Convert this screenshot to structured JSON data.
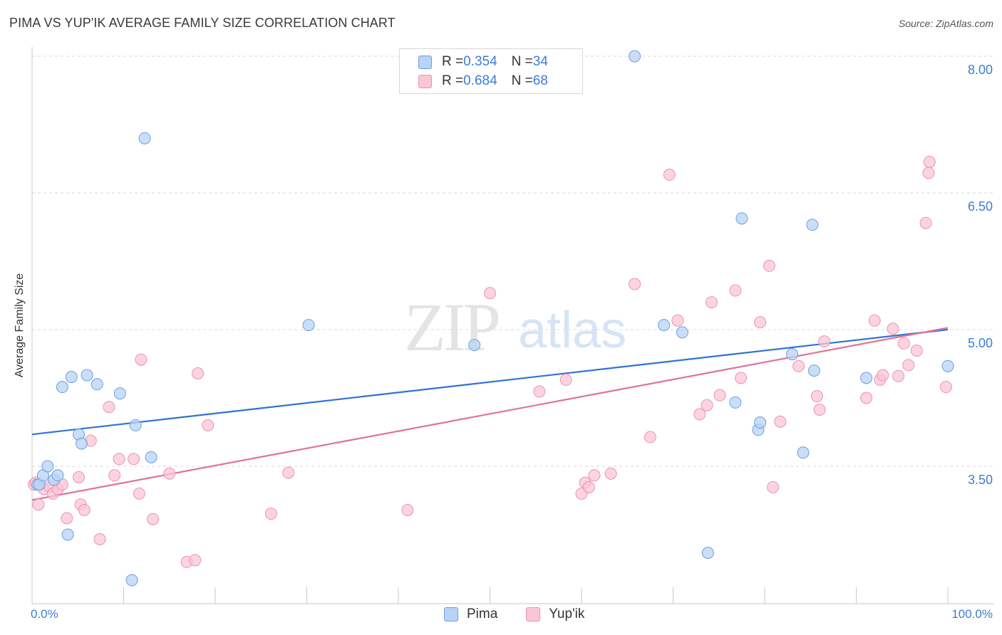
{
  "header": {
    "title": "PIMA VS YUP'IK AVERAGE FAMILY SIZE CORRELATION CHART",
    "source": "Source: ZipAtlas.com"
  },
  "legend_top": {
    "rows": [
      {
        "r_label": "R = ",
        "r_value": "0.354",
        "n_label": "N = ",
        "n_value": "34"
      },
      {
        "r_label": "R = ",
        "r_value": "0.684",
        "n_label": "N = ",
        "n_value": "68"
      }
    ]
  },
  "watermark": {
    "zip": "ZIP",
    "atlas": "atlas"
  },
  "colors": {
    "pima_fill": "#b8d3f5",
    "pima_stroke": "#6d9fe0",
    "pima_line": "#2f72d4",
    "yupik_fill": "#f9c6d5",
    "yupik_stroke": "#ec92b0",
    "yupik_line": "#e0729a",
    "axis_label": "#3b7dd8",
    "grid": "#d9d9d9"
  },
  "chart_data": {
    "type": "scatter",
    "title": "PIMA VS YUP'IK AVERAGE FAMILY SIZE CORRELATION CHART",
    "xlabel": "",
    "ylabel": "Average Family Size",
    "xlim": [
      0,
      100
    ],
    "ylim": [
      2.3,
      8.2
    ],
    "x_tick_labels": [
      "0.0%",
      "100.0%"
    ],
    "y_ticks": [
      3.5,
      5.0,
      6.5,
      8.0
    ],
    "y_tick_labels": [
      "3.50",
      "5.00",
      "6.50",
      "8.00"
    ],
    "grid": true,
    "legend": "bottom-center",
    "series": [
      {
        "name": "Pima",
        "R": 0.354,
        "N": 34,
        "trend": {
          "x": [
            0,
            100
          ],
          "y": [
            3.85,
            5.0
          ]
        },
        "points": [
          [
            0.6,
            3.3
          ],
          [
            0.8,
            3.3
          ],
          [
            1.2,
            3.4
          ],
          [
            1.7,
            3.5
          ],
          [
            2.4,
            3.35
          ],
          [
            2.8,
            3.4
          ],
          [
            3.3,
            4.37
          ],
          [
            3.9,
            2.75
          ],
          [
            4.3,
            4.48
          ],
          [
            5.1,
            3.85
          ],
          [
            5.4,
            3.75
          ],
          [
            6.0,
            4.5
          ],
          [
            7.1,
            4.4
          ],
          [
            9.6,
            4.3
          ],
          [
            10.9,
            2.25
          ],
          [
            11.3,
            3.95
          ],
          [
            12.3,
            7.1
          ],
          [
            13.0,
            3.6
          ],
          [
            30.2,
            5.05
          ],
          [
            48.3,
            4.83
          ],
          [
            65.8,
            8.0
          ],
          [
            69.0,
            5.05
          ],
          [
            71.0,
            4.97
          ],
          [
            73.8,
            2.55
          ],
          [
            76.8,
            4.2
          ],
          [
            77.5,
            6.22
          ],
          [
            79.3,
            3.9
          ],
          [
            79.5,
            3.98
          ],
          [
            83.0,
            4.73
          ],
          [
            84.2,
            3.65
          ],
          [
            85.2,
            6.15
          ],
          [
            85.4,
            4.55
          ],
          [
            91.1,
            4.47
          ],
          [
            100.0,
            4.6
          ]
        ]
      },
      {
        "name": "Yup'ik",
        "R": 0.684,
        "N": 68,
        "trend": {
          "x": [
            0,
            100
          ],
          "y": [
            3.13,
            5.02
          ]
        },
        "points": [
          [
            0.2,
            3.3
          ],
          [
            0.7,
            3.08
          ],
          [
            1.3,
            3.25
          ],
          [
            1.9,
            3.28
          ],
          [
            2.3,
            3.2
          ],
          [
            2.8,
            3.25
          ],
          [
            3.3,
            3.3
          ],
          [
            3.8,
            2.93
          ],
          [
            5.1,
            3.38
          ],
          [
            5.3,
            3.08
          ],
          [
            5.7,
            3.02
          ],
          [
            6.4,
            3.78
          ],
          [
            7.4,
            2.7
          ],
          [
            8.4,
            4.15
          ],
          [
            9.0,
            3.4
          ],
          [
            9.5,
            3.58
          ],
          [
            11.1,
            3.58
          ],
          [
            11.7,
            3.2
          ],
          [
            11.9,
            4.67
          ],
          [
            13.2,
            2.92
          ],
          [
            15.0,
            3.42
          ],
          [
            16.9,
            2.45
          ],
          [
            17.8,
            2.47
          ],
          [
            18.1,
            4.52
          ],
          [
            19.2,
            3.95
          ],
          [
            26.1,
            2.98
          ],
          [
            28.0,
            3.43
          ],
          [
            41.0,
            3.02
          ],
          [
            50.0,
            5.4
          ],
          [
            55.4,
            4.32
          ],
          [
            58.3,
            4.45
          ],
          [
            60.0,
            3.2
          ],
          [
            60.4,
            3.32
          ],
          [
            60.8,
            3.27
          ],
          [
            61.4,
            3.4
          ],
          [
            63.2,
            3.42
          ],
          [
            65.8,
            5.5
          ],
          [
            67.5,
            3.82
          ],
          [
            69.6,
            6.7
          ],
          [
            70.5,
            5.1
          ],
          [
            72.9,
            4.07
          ],
          [
            73.7,
            4.17
          ],
          [
            74.2,
            5.3
          ],
          [
            75.1,
            4.28
          ],
          [
            76.8,
            5.43
          ],
          [
            77.4,
            4.47
          ],
          [
            79.5,
            5.08
          ],
          [
            80.5,
            5.7
          ],
          [
            80.9,
            3.27
          ],
          [
            81.7,
            3.99
          ],
          [
            83.7,
            4.6
          ],
          [
            85.7,
            4.27
          ],
          [
            86.0,
            4.12
          ],
          [
            86.5,
            4.87
          ],
          [
            91.1,
            4.25
          ],
          [
            92.0,
            5.1
          ],
          [
            92.6,
            4.45
          ],
          [
            92.9,
            4.5
          ],
          [
            94.0,
            5.01
          ],
          [
            94.6,
            4.49
          ],
          [
            95.2,
            4.85
          ],
          [
            95.7,
            4.61
          ],
          [
            96.6,
            4.77
          ],
          [
            97.6,
            6.17
          ],
          [
            97.9,
            6.72
          ],
          [
            98.0,
            6.84
          ],
          [
            99.8,
            4.37
          ],
          [
            0.4,
            3.32
          ]
        ]
      }
    ]
  }
}
